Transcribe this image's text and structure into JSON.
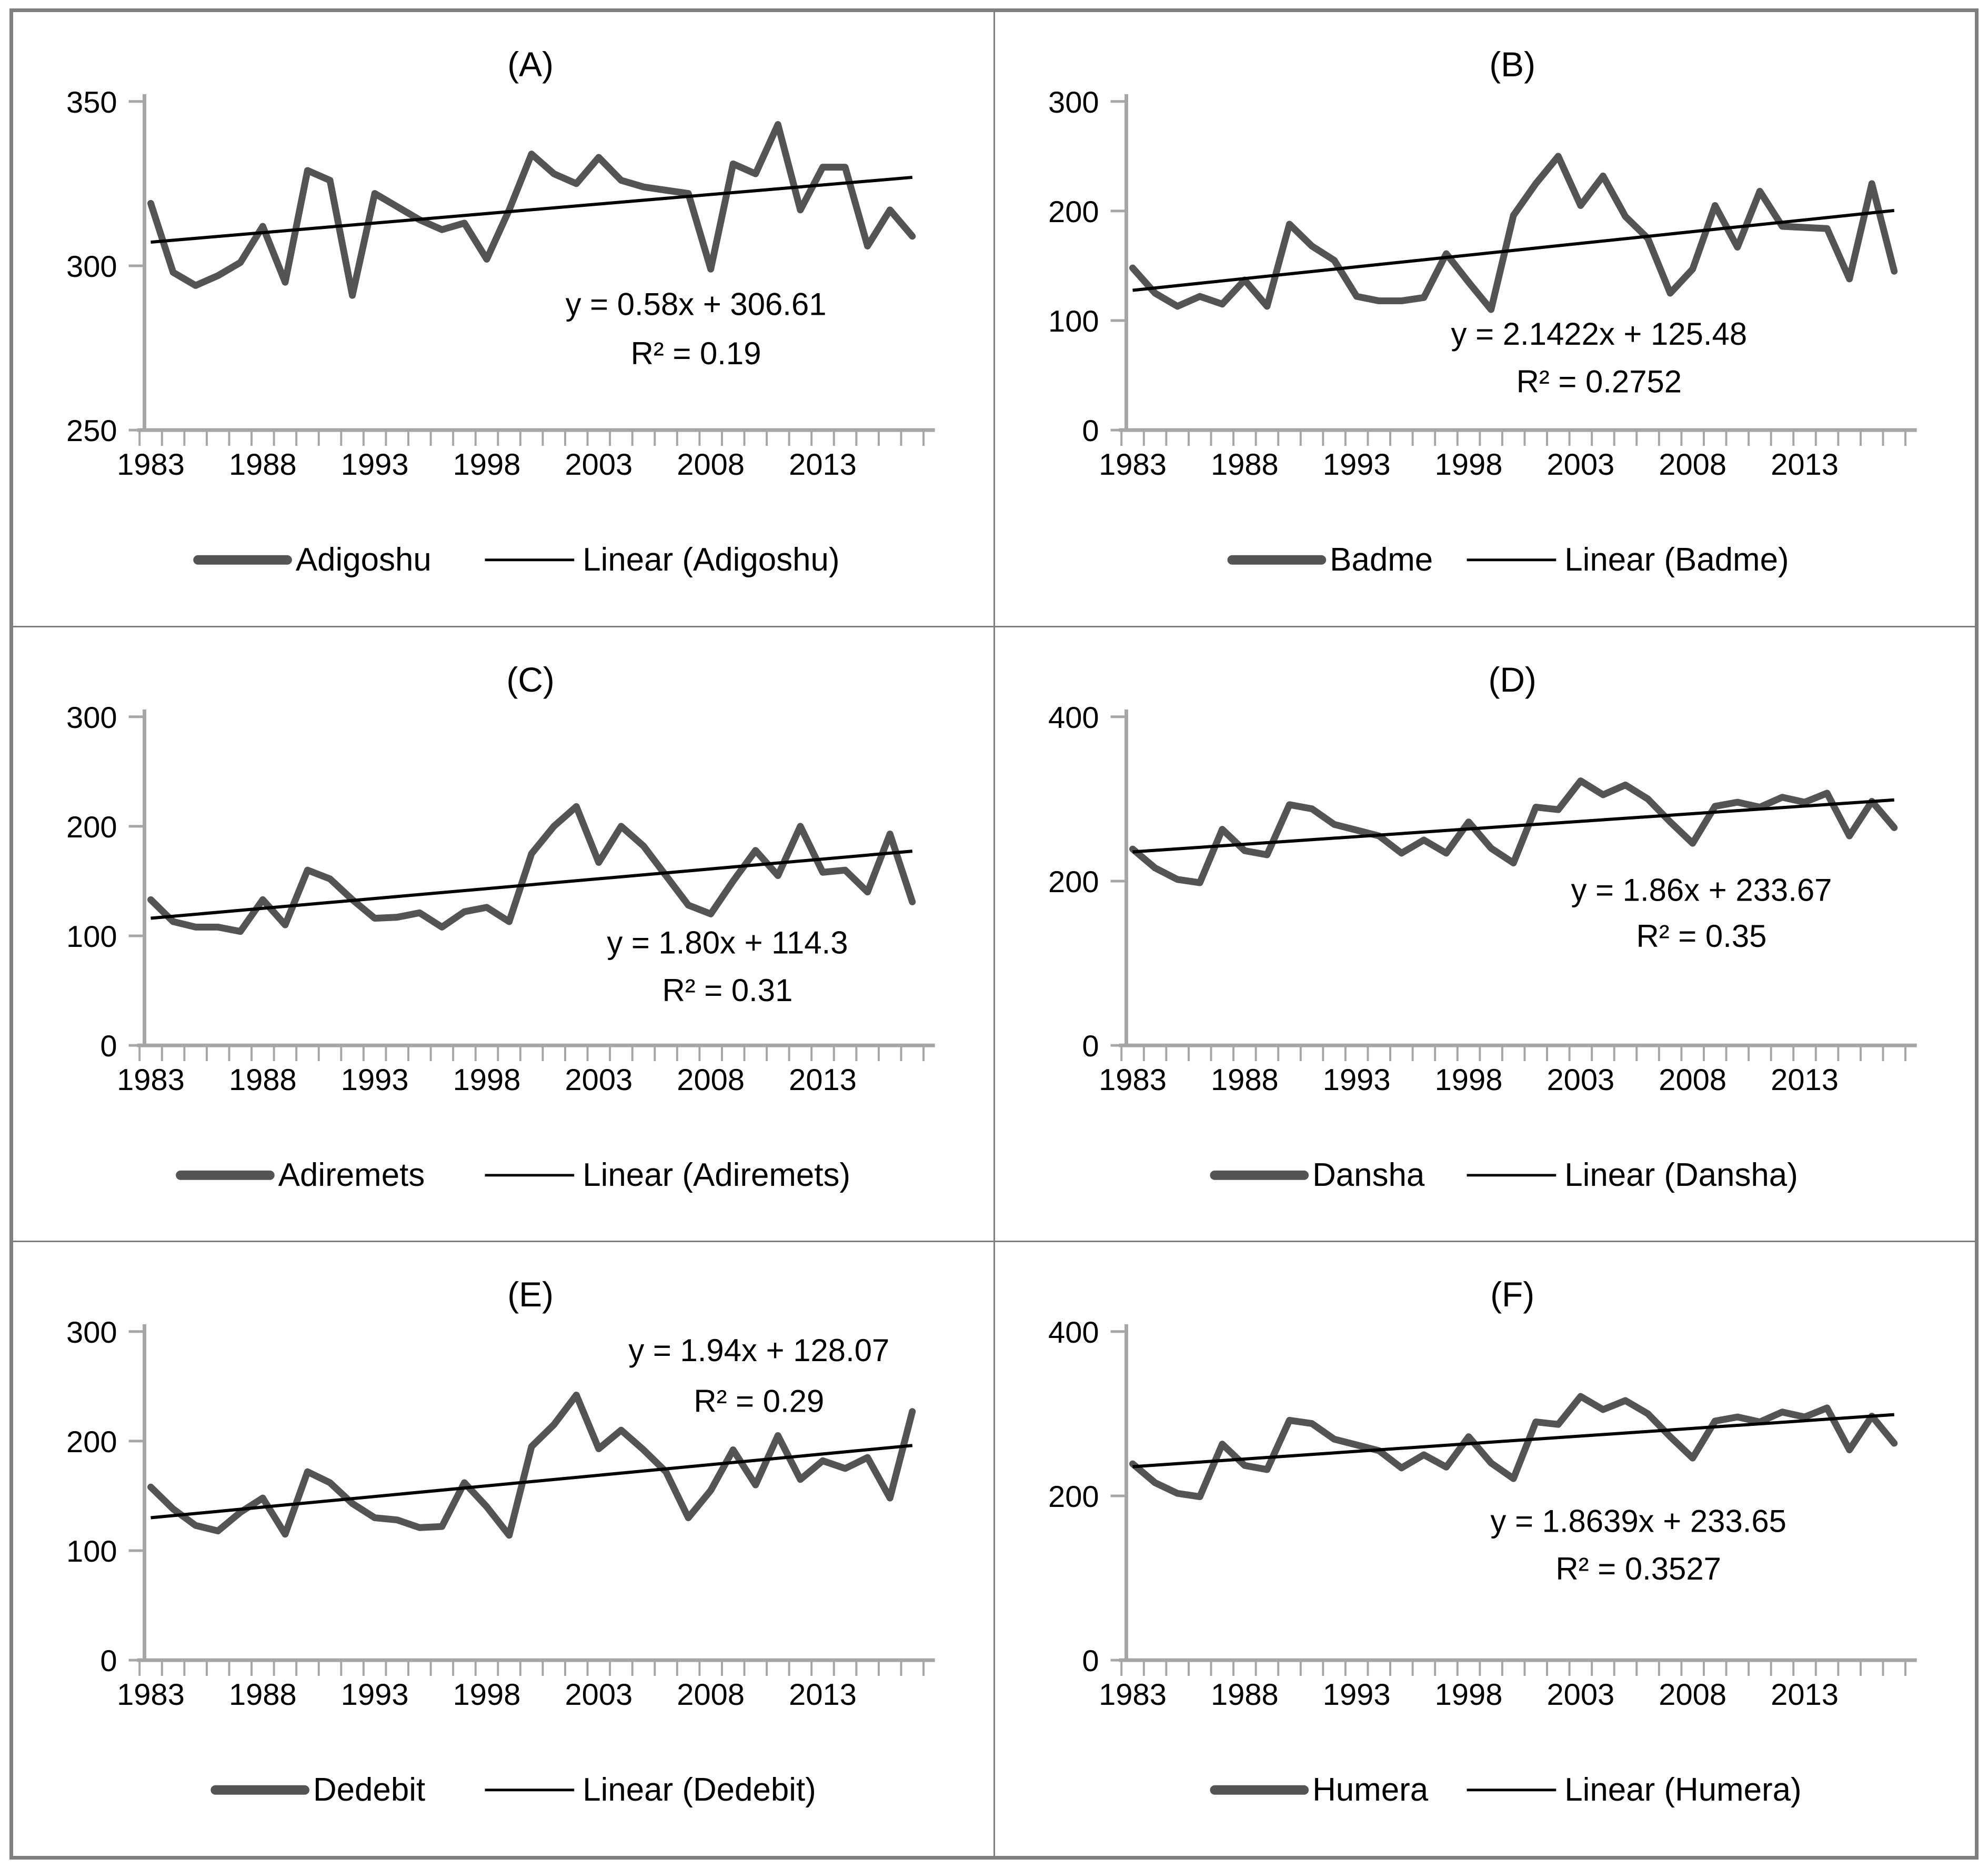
{
  "figure": {
    "description": "Six line charts (A-F) of annual station series 1983-2017 with linear trendlines",
    "panel_labels": [
      "(A)",
      "(B)",
      "(C)",
      "(D)",
      "(E)",
      "(F)"
    ]
  },
  "colors": {
    "series": "#545454",
    "trend": "#000000",
    "axis": "#a6a6a6",
    "text": "#000000",
    "frame": "#7f7f7f",
    "background": "#ffffff"
  },
  "chart_data": [
    {
      "type": "line",
      "title": "(A)",
      "station": "Adigoshu",
      "legend": [
        "Adigoshu",
        "Linear (Adigoshu)"
      ],
      "equation": "y = 0.58x + 306.61",
      "r_squared": "R² = 0.19",
      "trend": {
        "slope": 0.58,
        "intercept": 306.61
      },
      "ylim": [
        250,
        350
      ],
      "yticks": [
        250,
        300,
        350
      ],
      "xtick_labels": [
        "1983",
        "1988",
        "1993",
        "1998",
        "2003",
        "2008",
        "2013"
      ],
      "x": [
        1983,
        1984,
        1985,
        1986,
        1987,
        1988,
        1989,
        1990,
        1991,
        1992,
        1993,
        1994,
        1995,
        1996,
        1997,
        1998,
        1999,
        2000,
        2001,
        2002,
        2003,
        2004,
        2005,
        2006,
        2007,
        2008,
        2009,
        2010,
        2011,
        2012,
        2013,
        2014,
        2015,
        2016,
        2017
      ],
      "values": [
        319,
        298,
        294,
        297,
        301,
        312,
        295,
        329,
        326,
        291,
        322,
        318,
        314,
        311,
        313,
        302,
        317,
        334,
        328,
        325,
        333,
        326,
        324,
        323,
        322,
        299,
        331,
        328,
        343,
        317,
        330,
        330,
        306,
        317,
        309
      ],
      "xlabel": "",
      "ylabel": "",
      "grid": false,
      "legend_position": "bottom",
      "eq_pos": {
        "x": 0.7,
        "y": 0.65,
        "r2": 0.8
      }
    },
    {
      "type": "line",
      "title": "(B)",
      "station": "Badme",
      "legend": [
        "Badme",
        "Linear (Badme)"
      ],
      "equation": "y = 2.1422x + 125.48",
      "r_squared": "R² = 0.2752",
      "trend": {
        "slope": 2.1422,
        "intercept": 125.48
      },
      "ylim": [
        0,
        300
      ],
      "yticks": [
        0,
        100,
        200,
        300
      ],
      "xtick_labels": [
        "1983",
        "1988",
        "1993",
        "1998",
        "2003",
        "2008",
        "2013"
      ],
      "x": [
        1983,
        1984,
        1985,
        1986,
        1987,
        1988,
        1989,
        1990,
        1991,
        1992,
        1993,
        1994,
        1995,
        1996,
        1997,
        1998,
        1999,
        2000,
        2001,
        2002,
        2003,
        2004,
        2005,
        2006,
        2007,
        2008,
        2009,
        2010,
        2011,
        2012,
        2013,
        2014,
        2015,
        2016,
        2017
      ],
      "values": [
        148,
        125,
        113,
        122,
        115,
        137,
        113,
        188,
        168,
        155,
        122,
        118,
        118,
        121,
        161,
        135,
        110,
        196,
        225,
        250,
        205,
        232,
        195,
        175,
        125,
        147,
        205,
        167,
        218,
        186,
        185,
        184,
        138,
        225,
        145
      ],
      "xlabel": "",
      "ylabel": "",
      "grid": false,
      "legend_position": "bottom",
      "eq_pos": {
        "x": 0.6,
        "y": 0.74,
        "r2": 0.885
      }
    },
    {
      "type": "line",
      "title": "(C)",
      "station": "Adiremets",
      "legend": [
        "Adiremets",
        "Linear (Adiremets)"
      ],
      "equation": "y = 1.80x + 114.3",
      "r_squared": "R² = 0.31",
      "trend": {
        "slope": 1.8,
        "intercept": 114.3
      },
      "ylim": [
        0,
        300
      ],
      "yticks": [
        0,
        100,
        200,
        300
      ],
      "xtick_labels": [
        "1983",
        "1988",
        "1993",
        "1998",
        "2003",
        "2008",
        "2013"
      ],
      "x": [
        1983,
        1984,
        1985,
        1986,
        1987,
        1988,
        1989,
        1990,
        1991,
        1992,
        1993,
        1994,
        1995,
        1996,
        1997,
        1998,
        1999,
        2000,
        2001,
        2002,
        2003,
        2004,
        2005,
        2006,
        2007,
        2008,
        2009,
        2010,
        2011,
        2012,
        2013,
        2014,
        2015,
        2016,
        2017
      ],
      "values": [
        133,
        113,
        108,
        108,
        104,
        133,
        110,
        160,
        152,
        133,
        116,
        117,
        121,
        108,
        122,
        126,
        113,
        175,
        200,
        218,
        167,
        200,
        182,
        155,
        128,
        120,
        150,
        178,
        155,
        200,
        158,
        160,
        140,
        193,
        131
      ],
      "xlabel": "",
      "ylabel": "",
      "grid": false,
      "legend_position": "bottom",
      "eq_pos": {
        "x": 0.74,
        "y": 0.72,
        "r2": 0.865
      }
    },
    {
      "type": "line",
      "title": "(D)",
      "station": "Dansha",
      "legend": [
        "Dansha",
        "Linear (Dansha)"
      ],
      "equation": "y = 1.86x + 233.67",
      "r_squared": "R² = 0.35",
      "trend": {
        "slope": 1.86,
        "intercept": 233.67
      },
      "ylim": [
        0,
        400
      ],
      "yticks": [
        0,
        200,
        400
      ],
      "xtick_labels": [
        "1983",
        "1988",
        "1993",
        "1998",
        "2003",
        "2008",
        "2013"
      ],
      "x": [
        1983,
        1984,
        1985,
        1986,
        1987,
        1988,
        1989,
        1990,
        1991,
        1992,
        1993,
        1994,
        1995,
        1996,
        1997,
        1998,
        1999,
        2000,
        2001,
        2002,
        2003,
        2004,
        2005,
        2006,
        2007,
        2008,
        2009,
        2010,
        2011,
        2012,
        2013,
        2014,
        2015,
        2016,
        2017
      ],
      "values": [
        239,
        216,
        202,
        198,
        263,
        237,
        232,
        293,
        288,
        269,
        262,
        255,
        234,
        250,
        234,
        272,
        240,
        222,
        290,
        287,
        322,
        305,
        317,
        300,
        272,
        246,
        291,
        296,
        290,
        302,
        296,
        307,
        255,
        297,
        265
      ],
      "xlabel": "",
      "ylabel": "",
      "grid": false,
      "legend_position": "bottom",
      "eq_pos": {
        "x": 0.73,
        "y": 0.56,
        "r2": 0.7
      }
    },
    {
      "type": "line",
      "title": "(E)",
      "station": "Dedebit",
      "legend": [
        "Dedebit",
        "Linear (Dedebit)"
      ],
      "equation": "y = 1.94x + 128.07",
      "r_squared": "R² = 0.29",
      "trend": {
        "slope": 1.94,
        "intercept": 128.07
      },
      "ylim": [
        0,
        300
      ],
      "yticks": [
        0,
        100,
        200,
        300
      ],
      "xtick_labels": [
        "1983",
        "1988",
        "1993",
        "1998",
        "2003",
        "2008",
        "2013"
      ],
      "x": [
        1983,
        1984,
        1985,
        1986,
        1987,
        1988,
        1989,
        1990,
        1991,
        1992,
        1993,
        1994,
        1995,
        1996,
        1997,
        1998,
        1999,
        2000,
        2001,
        2002,
        2003,
        2004,
        2005,
        2006,
        2007,
        2008,
        2009,
        2010,
        2011,
        2012,
        2013,
        2014,
        2015,
        2016,
        2017
      ],
      "values": [
        158,
        138,
        123,
        118,
        135,
        148,
        115,
        172,
        162,
        143,
        130,
        128,
        121,
        122,
        162,
        140,
        114,
        195,
        215,
        242,
        193,
        210,
        192,
        172,
        130,
        155,
        192,
        160,
        205,
        165,
        182,
        175,
        185,
        148,
        227
      ],
      "xlabel": "",
      "ylabel": "",
      "grid": false,
      "legend_position": "bottom",
      "eq_pos": {
        "x": 0.78,
        "y": 0.09,
        "r2": 0.245
      }
    },
    {
      "type": "line",
      "title": "(F)",
      "station": "Humera",
      "legend": [
        "Humera",
        "Linear (Humera)"
      ],
      "equation": "y = 1.8639x + 233.65",
      "r_squared": "R² = 0.3527",
      "trend": {
        "slope": 1.8639,
        "intercept": 233.65
      },
      "ylim": [
        0,
        400
      ],
      "yticks": [
        0,
        200,
        400
      ],
      "xtick_labels": [
        "1983",
        "1988",
        "1993",
        "1998",
        "2003",
        "2008",
        "2013"
      ],
      "x": [
        1983,
        1984,
        1985,
        1986,
        1987,
        1988,
        1989,
        1990,
        1991,
        1992,
        1993,
        1994,
        1995,
        1996,
        1997,
        1998,
        1999,
        2000,
        2001,
        2002,
        2003,
        2004,
        2005,
        2006,
        2007,
        2008,
        2009,
        2010,
        2011,
        2012,
        2013,
        2014,
        2015,
        2016,
        2017
      ],
      "values": [
        239,
        216,
        203,
        199,
        263,
        237,
        232,
        292,
        288,
        269,
        262,
        255,
        234,
        250,
        235,
        272,
        240,
        221,
        290,
        287,
        321,
        305,
        316,
        300,
        272,
        246,
        291,
        296,
        290,
        302,
        296,
        307,
        256,
        297,
        264
      ],
      "xlabel": "",
      "ylabel": "",
      "grid": false,
      "legend_position": "bottom",
      "eq_pos": {
        "x": 0.65,
        "y": 0.61,
        "r2": 0.755
      }
    }
  ]
}
